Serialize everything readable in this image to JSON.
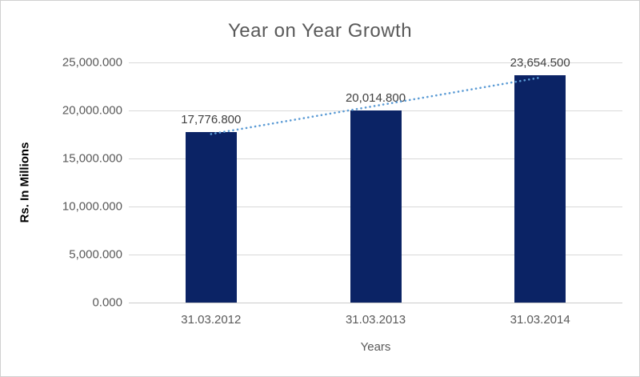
{
  "chart_data": {
    "type": "bar",
    "title": "Year on Year Growth",
    "categories": [
      "31.03.2012",
      "31.03.2013",
      "31.03.2014"
    ],
    "values": [
      17776.8,
      20014.8,
      23654.5
    ],
    "data_labels": [
      "17,776.800",
      "20,014.800",
      "23,654.500"
    ],
    "xlabel": "Years",
    "ylabel": "Rs. In Millions",
    "ylim": [
      0,
      25000
    ],
    "ytick_interval": 5000,
    "ytick_labels": [
      "0.000",
      "5,000.000",
      "10,000.000",
      "15,000.000",
      "20,000.000",
      "25,000.000"
    ],
    "grid": true,
    "legend": "none",
    "trendline": {
      "type": "linear",
      "style": "dotted"
    },
    "colors": {
      "bar": "#0b2365",
      "trendline": "#5b9bd5",
      "gridline": "#d9d9d9",
      "axis_line": "#cccccc",
      "title": "#595959",
      "tick_label": "#595959",
      "data_label": "#404040",
      "y_axis_title": "#000000",
      "x_axis_title": "#595959",
      "background": "#ffffff",
      "border": "#d0d0d0"
    }
  }
}
